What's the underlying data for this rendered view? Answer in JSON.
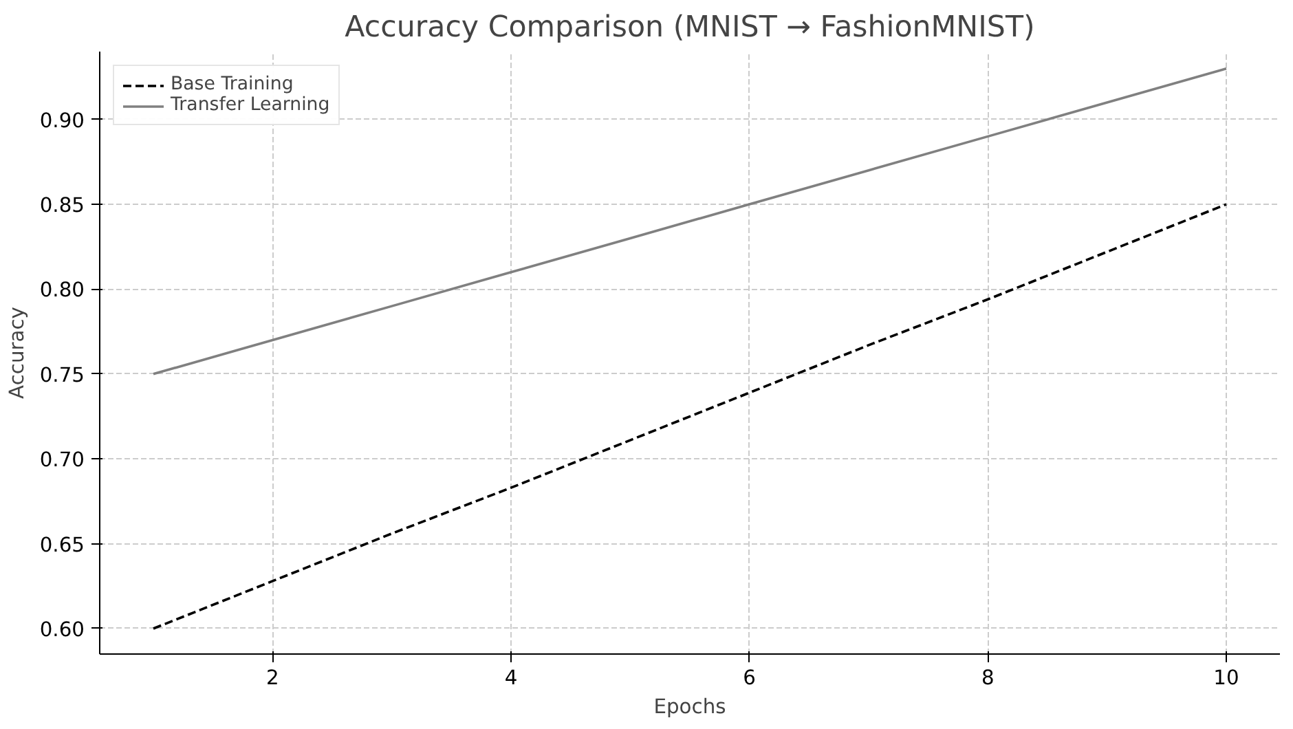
{
  "chart_data": {
    "type": "line",
    "title": "Accuracy Comparison (MNIST → FashionMNIST)",
    "xlabel": "Epochs",
    "ylabel": "Accuracy",
    "x": [
      1,
      2,
      3,
      4,
      5,
      6,
      7,
      8,
      9,
      10
    ],
    "series": [
      {
        "name": "Base Training",
        "color": "#000000",
        "line_style": "dashed",
        "values": [
          0.6,
          0.628,
          0.656,
          0.683,
          0.711,
          0.739,
          0.767,
          0.794,
          0.822,
          0.85
        ]
      },
      {
        "name": "Transfer Learning",
        "color": "#808080",
        "line_style": "solid",
        "values": [
          0.75,
          0.77,
          0.79,
          0.81,
          0.83,
          0.85,
          0.87,
          0.89,
          0.91,
          0.93
        ]
      }
    ],
    "xlim": [
      0.55,
      10.45
    ],
    "ylim": [
      0.585,
      0.94
    ],
    "xticks": [
      2,
      4,
      6,
      8,
      10
    ],
    "yticks": [
      {
        "value": 0.6,
        "label": "0.60"
      },
      {
        "value": 0.65,
        "label": "0.65"
      },
      {
        "value": 0.7,
        "label": "0.70"
      },
      {
        "value": 0.75,
        "label": "0.75"
      },
      {
        "value": 0.8,
        "label": "0.80"
      },
      {
        "value": 0.85,
        "label": "0.85"
      },
      {
        "value": 0.9,
        "label": "0.90"
      }
    ],
    "grid": true,
    "legend": "top left",
    "marker": "none"
  }
}
